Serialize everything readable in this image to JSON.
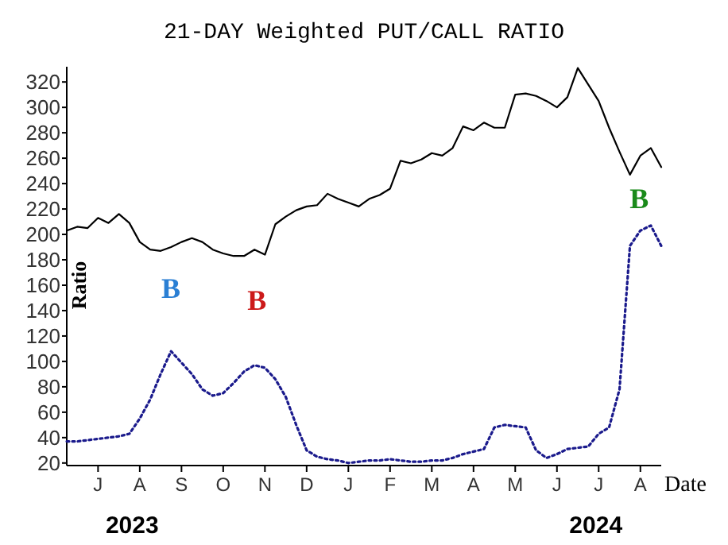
{
  "chart_data": {
    "type": "line",
    "title": "21-DAY Weighted PUT/CALL RATIO",
    "xlabel": "Date",
    "ylabel": "Ratio",
    "categories": [
      null,
      null,
      null,
      "J",
      null,
      null,
      null,
      "A",
      null,
      null,
      null,
      "S",
      null,
      null,
      null,
      "O",
      null,
      null,
      null,
      "N",
      null,
      null,
      null,
      "D",
      null,
      null,
      null,
      "J",
      null,
      null,
      null,
      "F",
      null,
      null,
      null,
      "M",
      null,
      null,
      null,
      "A",
      null,
      null,
      null,
      "M",
      null,
      null,
      null,
      "J",
      null,
      null,
      null,
      "J",
      null,
      null,
      null,
      "A",
      null,
      null
    ],
    "ylim": [
      18,
      332
    ],
    "yticks": [
      20,
      40,
      60,
      80,
      100,
      120,
      140,
      160,
      180,
      200,
      220,
      240,
      260,
      280,
      300,
      320
    ],
    "grid": false,
    "marker": "none",
    "series": [
      {
        "color": "#000000",
        "line_style": "solid",
        "values": [
          203,
          206,
          205,
          213,
          209,
          216,
          209,
          194,
          188,
          187,
          190,
          194,
          197,
          194,
          188,
          185,
          183,
          183,
          188,
          184,
          208,
          214,
          219,
          222,
          223,
          232,
          228,
          225,
          222,
          228,
          231,
          236,
          258,
          256,
          259,
          264,
          262,
          268,
          285,
          282,
          288,
          284,
          284,
          310,
          311,
          309,
          305,
          300,
          308,
          331,
          318,
          305,
          284,
          265,
          247,
          262,
          268,
          253
        ]
      },
      {
        "color": "#1a1a8c",
        "line_style": "dotted",
        "values": [
          37,
          37,
          38,
          39,
          40,
          41,
          43,
          55,
          70,
          90,
          108,
          99,
          90,
          78,
          73,
          75,
          83,
          92,
          97,
          95,
          86,
          72,
          50,
          30,
          25,
          23,
          22,
          20,
          21,
          22,
          22,
          23,
          22,
          21,
          21,
          22,
          22,
          24,
          27,
          29,
          31,
          48,
          50,
          49,
          48,
          30,
          24,
          27,
          31,
          32,
          33,
          43,
          48,
          78,
          191,
          203,
          207,
          191
        ]
      }
    ],
    "annotations": [
      "B",
      "B",
      "B",
      "2023",
      "2024"
    ]
  }
}
